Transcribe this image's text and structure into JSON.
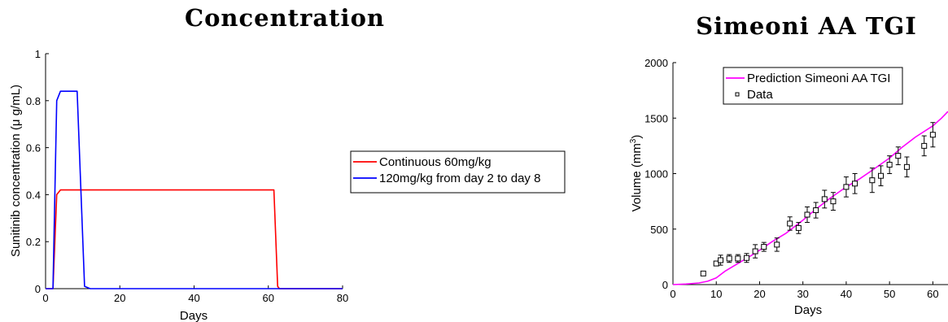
{
  "chart_data": [
    {
      "type": "line",
      "title": "Concentration",
      "xlabel": "Days",
      "ylabel": "Sunitinib concentration (μ g/mL)",
      "xlim": [
        0,
        80
      ],
      "ylim": [
        0,
        1
      ],
      "xticks": [
        0,
        20,
        40,
        60,
        80
      ],
      "yticks": [
        0,
        0.2,
        0.4,
        0.6,
        0.8,
        1
      ],
      "ytick_labels": [
        "0",
        "0.2",
        "0.4",
        "0.6",
        "0.8",
        "1"
      ],
      "grid": false,
      "legend_position": "right",
      "series": [
        {
          "name": "Continuous 60mg/kg",
          "color": "#ff0000",
          "x": [
            0,
            2,
            3,
            4,
            61.5,
            62.5,
            63,
            80
          ],
          "y": [
            0,
            0,
            0.4,
            0.42,
            0.42,
            0.01,
            0,
            0
          ]
        },
        {
          "name": "120mg/kg from day 2 to day 8",
          "color": "#0000ff",
          "x": [
            0,
            2,
            3,
            4,
            8.5,
            10.5,
            12,
            80
          ],
          "y": [
            0,
            0,
            0.8,
            0.84,
            0.84,
            0.01,
            0,
            0
          ]
        }
      ]
    },
    {
      "type": "line",
      "title": "Simeoni AA TGI",
      "xlabel": "Days",
      "ylabel": "Volume (mm",
      "ylabel_superscript": "3",
      "ylabel_suffix": ")",
      "xlim": [
        0,
        63.5
      ],
      "ylim": [
        0,
        2000
      ],
      "xticks": [
        0,
        10,
        20,
        30,
        40,
        50,
        60
      ],
      "yticks": [
        0,
        500,
        1000,
        1500,
        2000
      ],
      "grid": false,
      "legend_position": "top-left",
      "series": [
        {
          "name": "Prediction Simeoni AA TGI",
          "color": "#ff00ff",
          "x": [
            0,
            3,
            6,
            8,
            10,
            12,
            15,
            18,
            20,
            23,
            26,
            28,
            30,
            33,
            36,
            40,
            43,
            46,
            50,
            53,
            56,
            60,
            62,
            63.5
          ],
          "y": [
            0,
            5,
            15,
            30,
            60,
            120,
            190,
            260,
            310,
            390,
            460,
            520,
            580,
            680,
            770,
            880,
            950,
            1030,
            1140,
            1240,
            1330,
            1430,
            1500,
            1560
          ]
        },
        {
          "name": "Data",
          "marker": "square",
          "color": "#000000",
          "x": [
            7,
            10,
            11,
            13,
            15,
            17,
            19,
            21,
            24,
            27,
            29,
            31,
            33,
            35,
            37,
            40,
            42,
            46,
            48,
            50,
            52,
            54,
            58,
            60
          ],
          "y": [
            100,
            190,
            220,
            235,
            235,
            240,
            300,
            340,
            360,
            550,
            510,
            630,
            670,
            770,
            750,
            880,
            910,
            940,
            980,
            1080,
            1160,
            1060,
            1250,
            1350
          ],
          "err": [
            15,
            20,
            45,
            35,
            35,
            40,
            60,
            40,
            60,
            60,
            50,
            70,
            70,
            80,
            80,
            90,
            90,
            110,
            90,
            80,
            80,
            90,
            90,
            110
          ]
        }
      ]
    }
  ]
}
